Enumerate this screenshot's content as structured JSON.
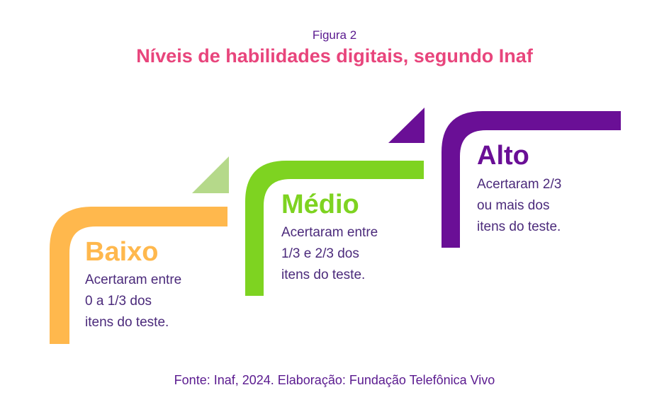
{
  "figure": {
    "label": "Figura 2",
    "title": "Níveis de habilidades digitais, segundo Inaf"
  },
  "levels": [
    {
      "name": "Baixo",
      "color": "#ffb84d",
      "triangle_color": "#b5d98a",
      "description": [
        "Acertaram entre",
        "0 a 1/3 dos",
        "itens do teste."
      ]
    },
    {
      "name": "Médio",
      "color": "#7ed321",
      "triangle_color": "#6a0f96",
      "description": [
        "Acertaram entre",
        "1/3 e 2/3 dos",
        "itens do teste."
      ]
    },
    {
      "name": "Alto",
      "color": "#6a0f96",
      "description": [
        "Acertaram 2/3",
        "ou mais dos",
        "itens do teste."
      ]
    }
  ],
  "source": "Fonte: Inaf, 2024. Elaboração: Fundação Telefônica Vivo"
}
